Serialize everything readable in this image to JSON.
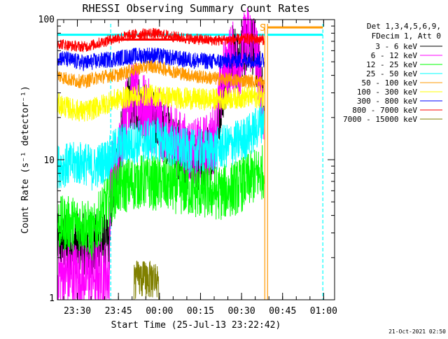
{
  "chart_data": {
    "type": "line",
    "title": "RHESSI Observing Summary Count Rates",
    "xlabel": "Start Time (25-Jul-13 23:22:42)",
    "ylabel": "Count Rate (s⁻¹ detector⁻¹)",
    "y_scale": "log",
    "ylim": [
      1,
      100
    ],
    "xlim": [
      "23:22:42",
      "01:04:00"
    ],
    "x_minutes_range": [
      0,
      101.3
    ],
    "x_ticks": [
      {
        "label": "23:30",
        "min": 7.3
      },
      {
        "label": "23:45",
        "min": 22.3
      },
      {
        "label": "00:00",
        "min": 37.3
      },
      {
        "label": "00:15",
        "min": 52.3
      },
      {
        "label": "00:30",
        "min": 67.3
      },
      {
        "label": "00:45",
        "min": 82.3
      },
      {
        "label": "01:00",
        "min": 97.3
      }
    ],
    "y_ticks": [
      {
        "label": "1",
        "value": 1
      },
      {
        "label": "10",
        "value": 10
      },
      {
        "label": "100",
        "value": 100
      }
    ],
    "legend_header": [
      "Det 1,3,4,5,6,9,",
      "FDecim 1, Att 0"
    ],
    "legend_position": "right",
    "flag_marker": "S",
    "footer_date": "21-Oct-2021 02:50",
    "data_end_min": 75.5,
    "vertical_markers": [
      {
        "min": 19.5,
        "color": "#00ffff",
        "style": "dashed"
      },
      {
        "min": 75.8,
        "color": "#ff9900",
        "style": "solid"
      },
      {
        "min": 76.8,
        "color": "#ff9900",
        "style": "solid"
      },
      {
        "min": 97.0,
        "color": "#00ffff",
        "style": "dashed"
      }
    ],
    "flag_bars": [
      {
        "color": "#00ffff",
        "y": 78,
        "segments": [
          [
            0,
            75.8
          ],
          [
            76.8,
            97.0
          ]
        ]
      },
      {
        "color": "#ff0000",
        "y": 72,
        "segments": [
          [
            19.5,
            75.5
          ]
        ]
      },
      {
        "color": "#ff9900",
        "y": 88,
        "segments": [
          [
            76.8,
            97.0
          ]
        ]
      }
    ],
    "series": [
      {
        "name": "3 - 6 keV",
        "color": "#000000",
        "x": [
          0,
          19,
          19.5,
          22,
          27,
          32,
          37,
          42,
          45,
          48,
          52,
          56,
          58,
          61,
          64,
          66,
          68,
          70,
          72,
          74,
          75.5
        ],
        "y": [
          2.5,
          2.5,
          4.5,
          8.5,
          28,
          22,
          17,
          14,
          11,
          10,
          9.5,
          11,
          14,
          35,
          60,
          48,
          58,
          78,
          60,
          38,
          20
        ]
      },
      {
        "name": "6 - 12 keV",
        "color": "#ff00ff",
        "x": [
          0,
          19,
          19.5,
          22,
          27,
          32,
          37,
          42,
          45,
          48,
          52,
          56,
          58,
          61,
          64,
          66,
          68,
          70,
          72,
          74,
          75.5
        ],
        "y": [
          1.5,
          1.5,
          7.5,
          8.5,
          30,
          22,
          18,
          15,
          12.5,
          11.5,
          11,
          12.5,
          16,
          42,
          55,
          44,
          62,
          75,
          65,
          36,
          22
        ]
      },
      {
        "name": "12 - 25 keV",
        "color": "#00ff00",
        "x": [
          0,
          10,
          13,
          19.5,
          22,
          30,
          40,
          50,
          60,
          66,
          70,
          75.5
        ],
        "y": [
          3.5,
          3.5,
          2.9,
          5.5,
          6.3,
          7.0,
          6.7,
          6.0,
          5.8,
          6.4,
          7.2,
          8.3
        ]
      },
      {
        "name": "25 - 50 keV",
        "color": "#00ffff",
        "x": [
          0,
          10,
          13,
          19.5,
          22,
          30,
          37,
          42,
          48,
          55,
          62,
          68,
          72,
          75.5
        ],
        "y": [
          9.0,
          9.5,
          8.5,
          10.5,
          12.5,
          13.5,
          14,
          12.5,
          11.5,
          11.5,
          12.5,
          14,
          16,
          20
        ]
      },
      {
        "name": "50 - 100 keV",
        "color": "#ff9900",
        "x": [
          0,
          5,
          10,
          13,
          19.5,
          22,
          28,
          34,
          40,
          46,
          52,
          58,
          64,
          70,
          74,
          75.5
        ],
        "y": [
          40,
          37,
          36,
          38,
          40,
          40,
          44,
          47,
          44,
          41,
          39,
          38,
          37,
          36.5,
          36,
          35
        ]
      },
      {
        "name": "100 - 300 keV",
        "color": "#ffff00",
        "x": [
          0,
          5,
          10,
          13,
          19.5,
          22,
          28,
          34,
          40,
          46,
          52,
          58,
          64,
          70,
          75.5
        ],
        "y": [
          25,
          23,
          22,
          23,
          26,
          27,
          28.5,
          29,
          28,
          27.5,
          27,
          27,
          27.5,
          28,
          28
        ]
      },
      {
        "name": "300 - 800 keV",
        "color": "#0000ff",
        "x": [
          0,
          5,
          10,
          13,
          19.5,
          22,
          28,
          34,
          40,
          46,
          52,
          58,
          64,
          70,
          75.5
        ],
        "y": [
          54,
          51,
          49,
          50,
          52,
          53,
          55,
          56,
          54,
          52,
          51,
          50,
          51,
          52,
          51
        ]
      },
      {
        "name": "800 - 7000 keV",
        "color": "#ff0000",
        "x": [
          0,
          5,
          10,
          13,
          19.5,
          22,
          28,
          34,
          40,
          46,
          52,
          58,
          64,
          70,
          75.5
        ],
        "y": [
          68,
          65,
          64,
          66,
          72,
          74,
          78,
          80,
          77,
          74,
          72,
          71,
          72,
          73,
          72
        ]
      },
      {
        "name": "7000 - 15000 keV",
        "color": "#808000",
        "x": [
          0,
          10,
          20,
          28,
          29,
          33,
          34,
          36,
          37,
          45,
          55,
          65,
          75.5
        ],
        "y": [
          0,
          0,
          0,
          0,
          1.9,
          1.9,
          1.5,
          1.9,
          0,
          0,
          0,
          0,
          0
        ]
      }
    ]
  }
}
